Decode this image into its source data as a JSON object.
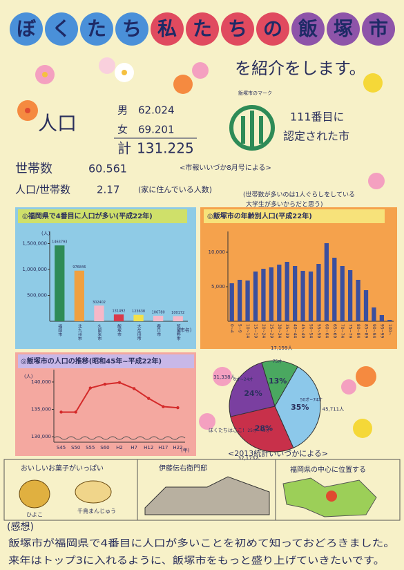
{
  "header": {
    "title_groups": [
      {
        "chars": [
          "ぼ",
          "く",
          "た",
          "ち"
        ],
        "color": "#4a90d9"
      },
      {
        "chars": [
          "私",
          "た",
          "ち",
          "の"
        ],
        "color": "#e04a5f"
      },
      {
        "chars": [
          "飯",
          "塚",
          "市"
        ],
        "color": "#8e54a9"
      }
    ],
    "subtitle": "を紹介をします。"
  },
  "population": {
    "label": "人口",
    "male_label": "男",
    "male": "62.024",
    "female_label": "女",
    "female": "69.201",
    "total_label": "計",
    "total": "131.225"
  },
  "emblem": {
    "caption": "飯塚市のマーク",
    "line1": "111番目に",
    "line2": "認定された市"
  },
  "households": {
    "label": "世帯数",
    "value": "60.561",
    "source": "<市報いいづか8月号による>",
    "ratio_label": "人口/世帯数",
    "ratio": "2.17",
    "ratio_note": "(家に住んでいる人数)",
    "comment1": "(世帯数が多いのは1人ぐらしをしている",
    "comment2": "大学生が多いからだと思う)"
  },
  "chart_data": [
    {
      "type": "bar",
      "title": "◎福岡県で4番目に人口が多い(平成22年)",
      "ylabel": "(人)",
      "xlabel": "(市名)",
      "categories": [
        "福岡市",
        "北九州市",
        "久留米市",
        "飯塚市",
        "大牟田市",
        "春日市",
        "筑紫野市"
      ],
      "values": [
        1463793,
        976846,
        302402,
        131492,
        123638,
        106780,
        100172
      ],
      "colors": [
        "#2e8b57",
        "#f0a040",
        "#f6b8c8",
        "#d93a4a",
        "#f2e04a",
        "#f6b8c8",
        "#f6b8c8"
      ],
      "ylim": [
        0,
        1600000
      ],
      "yticks": [
        {
          "value": 500000,
          "label": "500,000"
        },
        {
          "value": 1000000,
          "label": "1,000,000"
        },
        {
          "value": 1500000,
          "label": "1,500,000"
        }
      ]
    },
    {
      "type": "bar",
      "title": "◎飯塚市の年齢別人口(平成22年)",
      "color": "#3b4f9e",
      "categories": [
        "0~4",
        "5~9",
        "10~14",
        "15~19",
        "20~24",
        "25~29",
        "30~34",
        "35~39",
        "40~44",
        "45~49",
        "50~54",
        "55~59",
        "60~64",
        "65~69",
        "70~74",
        "75~79",
        "80~84",
        "85~89",
        "90~94",
        "95~99",
        "100~"
      ],
      "values": [
        5500,
        6000,
        5900,
        7200,
        7600,
        7800,
        8200,
        8600,
        8000,
        7300,
        7200,
        8300,
        11300,
        9200,
        8000,
        7400,
        6000,
        4500,
        2000,
        900,
        200
      ],
      "ylim": [
        0,
        12000
      ],
      "yticks": [
        {
          "value": 5000,
          "label": "5,000"
        },
        {
          "value": 10000,
          "label": "10,000"
        }
      ]
    },
    {
      "type": "line",
      "title": "◎飯塚市の人口の推移(昭和45年~平成22年)",
      "ylabel": "(人)",
      "xlabel": "(年)",
      "color": "#d42a2a",
      "categories": [
        "S45",
        "S50",
        "S55",
        "S60",
        "H2",
        "H7",
        "H12",
        "H17",
        "H22"
      ],
      "values": [
        134500,
        134500,
        138900,
        139600,
        139900,
        138800,
        137000,
        135500,
        135300
      ],
      "ylim": [
        129000,
        141000
      ],
      "yticks": [
        {
          "value": 130000,
          "label": "130,000"
        },
        {
          "value": 135000,
          "label": "135,000"
        },
        {
          "value": 140000,
          "label": "140,000"
        }
      ]
    },
    {
      "type": "pie",
      "title": "<2013統計いいづかによる>",
      "note": "ぼくたちはここ!",
      "categories": [
        "50才~74才",
        "25才~49才",
        "0才~24才",
        "75才~"
      ],
      "values": [
        35,
        28,
        24,
        13
      ],
      "value_labels": [
        "35%",
        "28%",
        "24%",
        "13%"
      ],
      "counts": [
        "45,711人",
        "37,173人",
        "31,338人",
        "17,159人"
      ],
      "colors": [
        "#8cc8ea",
        "#c8304a",
        "#7a3fa0",
        "#4aa860"
      ]
    }
  ],
  "panels": {
    "sweets": "おいしいお菓子がいっぱい",
    "sweet1": "ひよこ",
    "sweet2": "千鳥まんじゅう",
    "house": "伊藤伝右衛門邸",
    "location": "福岡県の中心に位置する"
  },
  "impression": {
    "heading": "(感想)",
    "line1": "飯塚市が福岡県で4番目に人口が多いことを初めて知っておどろきました。",
    "line2": "来年はトップ3に入れるように、飯塚市をもっと盛り上げていきたいです。"
  }
}
